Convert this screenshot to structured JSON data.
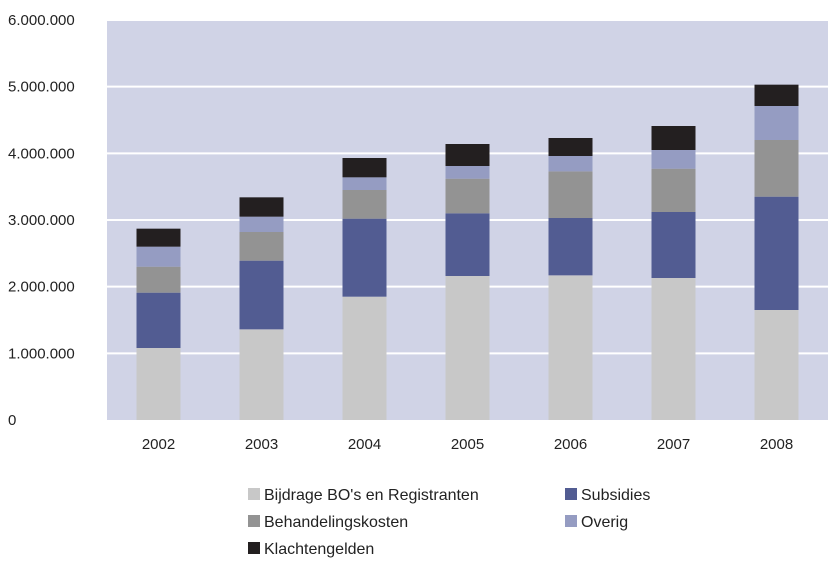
{
  "chart_data": {
    "type": "bar",
    "stacked": true,
    "categories": [
      "2002",
      "2003",
      "2004",
      "2005",
      "2006",
      "2007",
      "2008"
    ],
    "series": [
      {
        "name": "Bijdrage BO's en Registranten",
        "color": "#c8c8c8",
        "values": [
          1080000,
          1360000,
          1850000,
          2160000,
          2170000,
          2130000,
          1650000
        ]
      },
      {
        "name": "Subsidies",
        "color": "#525c92",
        "values": [
          830000,
          1030000,
          1170000,
          940000,
          860000,
          990000,
          1700000
        ]
      },
      {
        "name": "Behandelingskosten",
        "color": "#939393",
        "values": [
          390000,
          430000,
          430000,
          520000,
          700000,
          650000,
          850000
        ]
      },
      {
        "name": "Overig",
        "color": "#959cc2",
        "values": [
          300000,
          230000,
          190000,
          190000,
          230000,
          280000,
          510000
        ]
      },
      {
        "name": "Klachtengelden",
        "color": "#231f20",
        "values": [
          270000,
          290000,
          290000,
          330000,
          270000,
          360000,
          320000
        ]
      }
    ],
    "yticks": [
      {
        "value": 0,
        "label": "0"
      },
      {
        "value": 1000000,
        "label": "1.000.000"
      },
      {
        "value": 2000000,
        "label": "2.000.000"
      },
      {
        "value": 3000000,
        "label": "3.000.000"
      },
      {
        "value": 4000000,
        "label": "4.000.000"
      },
      {
        "value": 5000000,
        "label": "5.000.000"
      },
      {
        "value": 6000000,
        "label": "6.000.000"
      }
    ],
    "ylim": [
      0,
      6000000
    ],
    "grid": true,
    "plot_background": "#d0d3e6",
    "grid_color": "#ffffff",
    "legend_position": "bottom"
  }
}
